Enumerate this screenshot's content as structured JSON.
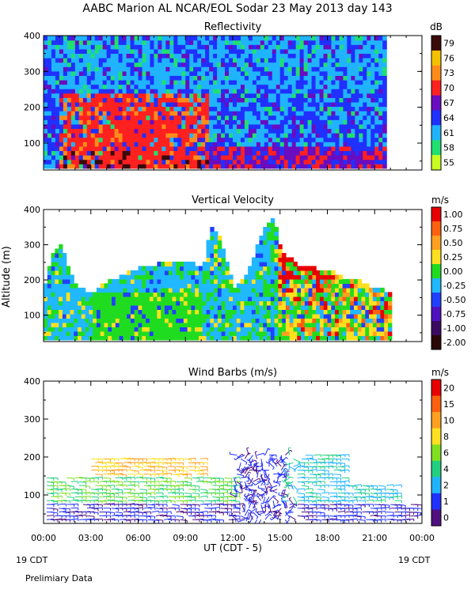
{
  "header": {
    "title": "AABC Marion AL NCAR/EOL Sodar  23 May 2013 day 143",
    "footer_note": "Prelimiary Data",
    "date_left": "19 CDT",
    "date_right": "19 CDT"
  },
  "chart_data": [
    {
      "type": "heatmap",
      "title": "Reflectivity",
      "ylabel": "",
      "ylim": [
        25,
        400
      ],
      "yticks": [
        "100",
        "200",
        "300",
        "400"
      ],
      "xlim_hours_ut": [
        0,
        24
      ],
      "colorbar": {
        "unit": "dB",
        "labels": [
          "79",
          "76",
          "73",
          "70",
          "67",
          "64",
          "61",
          "58",
          "55"
        ],
        "colors": [
          "#3a0a0a",
          "#f5c000",
          "#ff8c1a",
          "#ff2020",
          "#6a0cc0",
          "#2030ff",
          "#20b4ff",
          "#20e070",
          "#c8ff20"
        ]
      },
      "summary": "Reflectivity high (70-79 dB) in 30-220 m layer between ~01:00 and ~10:00 UT, mostly 58-67 dB elsewhere up to 400 m until ~21:30 UT."
    },
    {
      "type": "heatmap",
      "title": "Vertical Velocity",
      "ylabel": "Altitude (m)",
      "ylim": [
        25,
        400
      ],
      "yticks": [
        "100",
        "200",
        "300",
        "400"
      ],
      "xlim_hours_ut": [
        0,
        24
      ],
      "colorbar": {
        "unit": "m/s",
        "labels": [
          "1.00",
          "0.75",
          "0.50",
          "0.25",
          "0.00",
          "-0.25",
          "-0.50",
          "-0.75",
          "-1.00",
          "-2.00"
        ],
        "colors": [
          "#e80000",
          "#ff6010",
          "#ffa020",
          "#ffe020",
          "#20dc20",
          "#20b8ff",
          "#2040ff",
          "#5010c0",
          "#3a0a60",
          "#2a0808"
        ]
      },
      "data_top_m": {
        "hours_ut": [
          0,
          0.5,
          1.0,
          1.5,
          2.0,
          3.0,
          4.0,
          5.0,
          6.0,
          7.0,
          8.0,
          9.0,
          10.0,
          10.5,
          11.0,
          11.5,
          12.0,
          13.0,
          13.5,
          14.0,
          14.5,
          15.0,
          16.0,
          17.0,
          18.0,
          19.0,
          20.0,
          21.0,
          22.0
        ],
        "top_altitude_m": [
          190,
          280,
          300,
          230,
          170,
          160,
          190,
          210,
          230,
          240,
          240,
          250,
          230,
          350,
          330,
          250,
          170,
          230,
          300,
          350,
          370,
          270,
          240,
          230,
          220,
          200,
          190,
          170,
          160
        ]
      }
    },
    {
      "type": "scatter",
      "title": "Wind Barbs (m/s)",
      "ylim": [
        25,
        400
      ],
      "yticks": [
        "100",
        "200",
        "300",
        "400"
      ],
      "xlim_hours_ut": [
        0,
        24
      ],
      "colorbar": {
        "unit": "m/s",
        "labels": [
          "20",
          "15",
          "10",
          "8",
          "6",
          "4",
          "2",
          "1",
          "0"
        ],
        "colors": [
          "#e80000",
          "#ff6010",
          "#ffa020",
          "#ffe020",
          "#80e020",
          "#20d080",
          "#20b4ff",
          "#2030ff",
          "#501080"
        ]
      },
      "summary": "Wind barbs 30-200 m: 4-8 m/s near 03:00-09:00 UT, weak 0-2 m/s 12:00-15:00 UT, 2-6 m/s afterwards."
    }
  ],
  "x_axis": {
    "tick_labels": [
      "00:00",
      "03:00",
      "06:00",
      "09:00",
      "12:00",
      "15:00",
      "18:00",
      "21:00",
      "00:00"
    ],
    "xlabel": "UT  (CDT - 5)"
  }
}
